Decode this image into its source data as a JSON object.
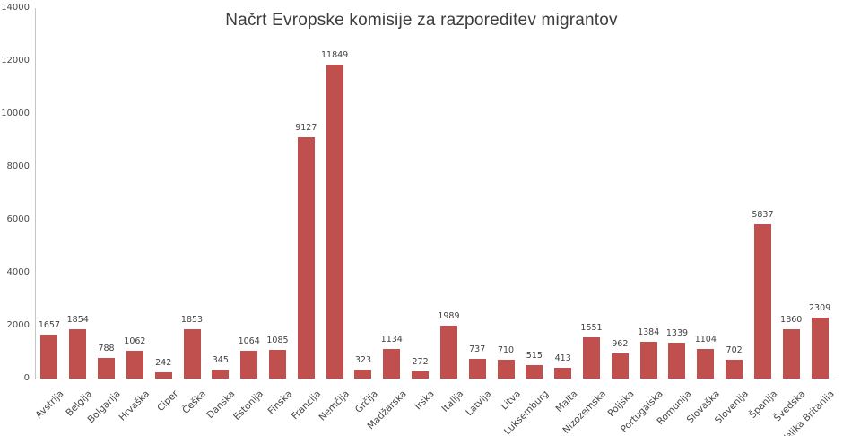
{
  "chart_data": {
    "type": "bar",
    "title": "Načrt Evropske komisije za razporeditev migrantov",
    "categories": [
      "Avstrija",
      "Belgija",
      "Bolgarija",
      "Hrvaška",
      "Ciper",
      "Češka",
      "Danska",
      "Estonija",
      "Finska",
      "Francija",
      "Nemčija",
      "Grčija",
      "Madžarska",
      "Irska",
      "Italija",
      "Latvija",
      "Litva",
      "Luksemburg",
      "Malta",
      "Nizozemska",
      "Poljska",
      "Portugalska",
      "Romunija",
      "Slovaška",
      "Slovenija",
      "Španija",
      "Švedska",
      "Velika Britanija"
    ],
    "values": [
      1657,
      1854,
      788,
      1062,
      242,
      1853,
      345,
      1064,
      1085,
      9127,
      11849,
      323,
      1134,
      272,
      1989,
      737,
      710,
      515,
      413,
      1551,
      962,
      1384,
      1339,
      1104,
      702,
      5837,
      1860,
      2309
    ],
    "xlabel": "",
    "ylabel": "",
    "ylim": [
      0,
      14000
    ],
    "yticks": [
      0,
      2000,
      4000,
      6000,
      8000,
      10000,
      12000,
      14000
    ],
    "grid": false,
    "legend": false,
    "data_labels": true,
    "bar_color": "#C0504D",
    "axis_line_color": "#C6C6C6",
    "tick_label_color": "#4A4A4A",
    "value_label_color": "#424242",
    "title_color": "#3D3D3D",
    "background_color": "#FFFFFF"
  }
}
